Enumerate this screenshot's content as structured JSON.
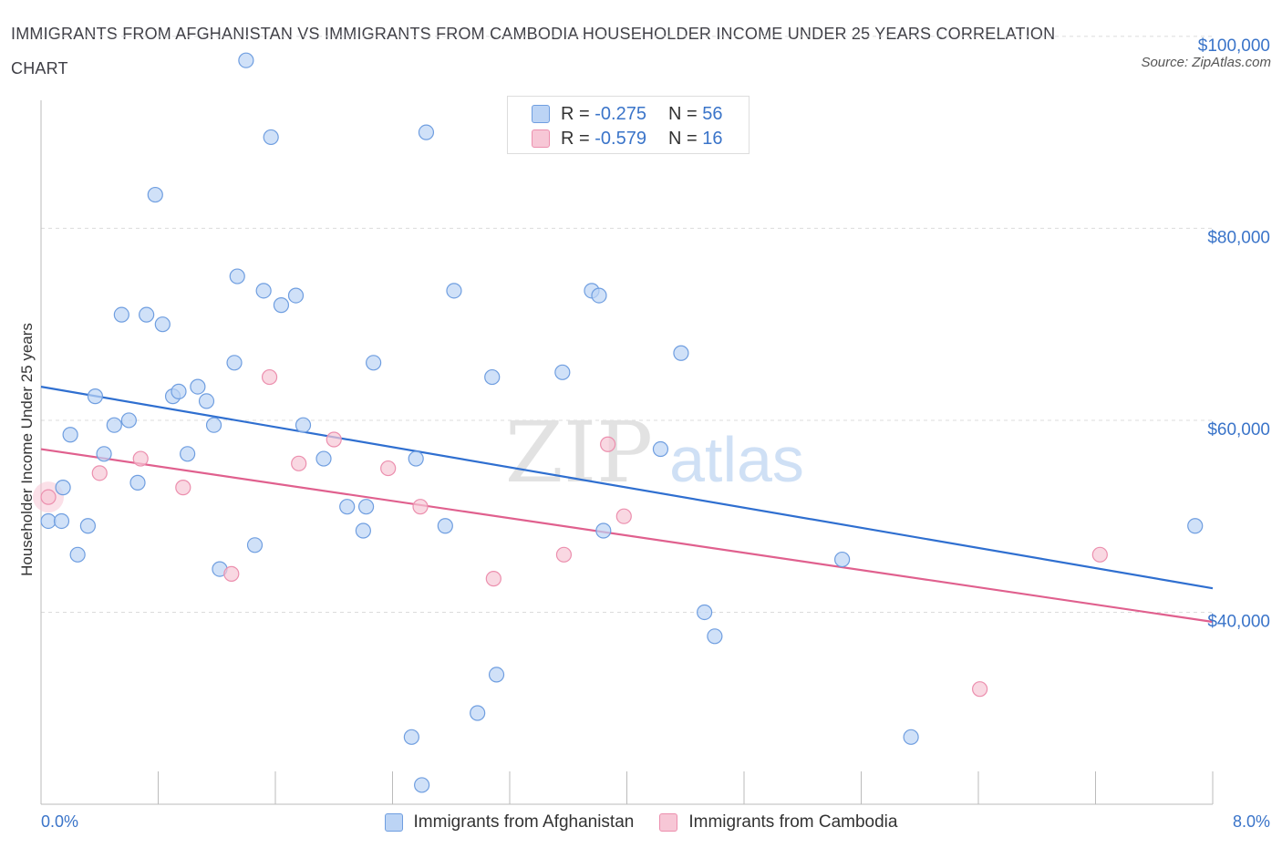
{
  "header": {
    "title": "IMMIGRANTS FROM AFGHANISTAN VS IMMIGRANTS FROM CAMBODIA HOUSEHOLDER INCOME UNDER 25 YEARS CORRELATION CHART",
    "source": "Source: ZipAtlas.com"
  },
  "watermark": {
    "zip": "ZIP",
    "atlas": "atlas"
  },
  "stats": {
    "afghanistan": {
      "r_label": "R =",
      "r_value": "-0.275",
      "n_label": "N =",
      "n_value": "56"
    },
    "cambodia": {
      "r_label": "R =",
      "r_value": "-0.579",
      "n_label": "N =",
      "n_value": "16"
    }
  },
  "colors": {
    "afghanistan_fill": "#bcd4f5",
    "afghanistan_stroke": "#6f9ee0",
    "afghanistan_line": "#2f6fd0",
    "cambodia_fill": "#f7c7d6",
    "cambodia_stroke": "#ec8fae",
    "cambodia_line": "#e0608e",
    "tick_label": "#3a74c9"
  },
  "chart_data": {
    "type": "scatter",
    "title": "IMMIGRANTS FROM AFGHANISTAN VS IMMIGRANTS FROM CAMBODIA HOUSEHOLDER INCOME UNDER 25 YEARS CORRELATION CHART",
    "xlabel": "",
    "ylabel": "Householder Income Under 25 years",
    "xlim": [
      0,
      8
    ],
    "ylim": [
      20000,
      102000
    ],
    "x_tick_labels": [
      "0.0%",
      "8.0%"
    ],
    "y_ticks": [
      40000,
      60000,
      80000,
      100000
    ],
    "y_tick_labels": [
      "$40,000",
      "$60,000",
      "$80,000",
      "$100,000"
    ],
    "grid": "horizontal dashed",
    "legend_position": "bottom-center",
    "series": [
      {
        "name": "Immigrants from Afghanistan",
        "color": "#bcd4f5",
        "trend": {
          "x": [
            0,
            8
          ],
          "y": [
            63500,
            42500
          ]
        },
        "points": [
          [
            0.05,
            49500
          ],
          [
            0.14,
            49500
          ],
          [
            0.15,
            53000
          ],
          [
            0.2,
            58500
          ],
          [
            0.25,
            46000
          ],
          [
            0.32,
            49000
          ],
          [
            0.37,
            62500
          ],
          [
            0.43,
            56500
          ],
          [
            0.5,
            59500
          ],
          [
            0.6,
            60000
          ],
          [
            0.55,
            71000
          ],
          [
            0.66,
            53500
          ],
          [
            0.72,
            71000
          ],
          [
            0.78,
            83500
          ],
          [
            0.83,
            70000
          ],
          [
            0.9,
            62500
          ],
          [
            0.94,
            63000
          ],
          [
            1.0,
            56500
          ],
          [
            1.07,
            63500
          ],
          [
            1.13,
            62000
          ],
          [
            1.18,
            59500
          ],
          [
            1.22,
            44500
          ],
          [
            1.32,
            66000
          ],
          [
            1.34,
            75000
          ],
          [
            1.4,
            97500
          ],
          [
            1.46,
            47000
          ],
          [
            1.52,
            73500
          ],
          [
            1.57,
            89500
          ],
          [
            1.64,
            72000
          ],
          [
            1.74,
            73000
          ],
          [
            1.79,
            59500
          ],
          [
            1.93,
            56000
          ],
          [
            2.09,
            51000
          ],
          [
            2.2,
            48500
          ],
          [
            2.22,
            51000
          ],
          [
            2.27,
            66000
          ],
          [
            2.53,
            27000
          ],
          [
            2.56,
            56000
          ],
          [
            2.6,
            22000
          ],
          [
            2.63,
            90000
          ],
          [
            2.76,
            49000
          ],
          [
            2.82,
            73500
          ],
          [
            2.98,
            29500
          ],
          [
            3.08,
            64500
          ],
          [
            3.11,
            33500
          ],
          [
            3.56,
            65000
          ],
          [
            3.76,
            73500
          ],
          [
            3.81,
            73000
          ],
          [
            3.84,
            48500
          ],
          [
            4.23,
            57000
          ],
          [
            4.37,
            67000
          ],
          [
            4.53,
            40000
          ],
          [
            4.6,
            37500
          ],
          [
            5.47,
            45500
          ],
          [
            5.94,
            27000
          ],
          [
            7.88,
            49000
          ]
        ]
      },
      {
        "name": "Immigrants from Cambodia",
        "color": "#f7c7d6",
        "trend": {
          "x": [
            0,
            8
          ],
          "y": [
            57000,
            39000
          ]
        },
        "points": [
          [
            0.05,
            52000
          ],
          [
            0.4,
            54500
          ],
          [
            0.68,
            56000
          ],
          [
            0.97,
            53000
          ],
          [
            1.3,
            44000
          ],
          [
            1.56,
            64500
          ],
          [
            1.76,
            55500
          ],
          [
            2.0,
            58000
          ],
          [
            2.37,
            55000
          ],
          [
            2.59,
            51000
          ],
          [
            3.09,
            43500
          ],
          [
            3.57,
            46000
          ],
          [
            3.87,
            57500
          ],
          [
            3.98,
            50000
          ],
          [
            6.41,
            32000
          ],
          [
            7.23,
            46000
          ]
        ]
      }
    ]
  },
  "legend": {
    "afghanistan": "Immigrants from Afghanistan",
    "cambodia": "Immigrants from Cambodia"
  }
}
